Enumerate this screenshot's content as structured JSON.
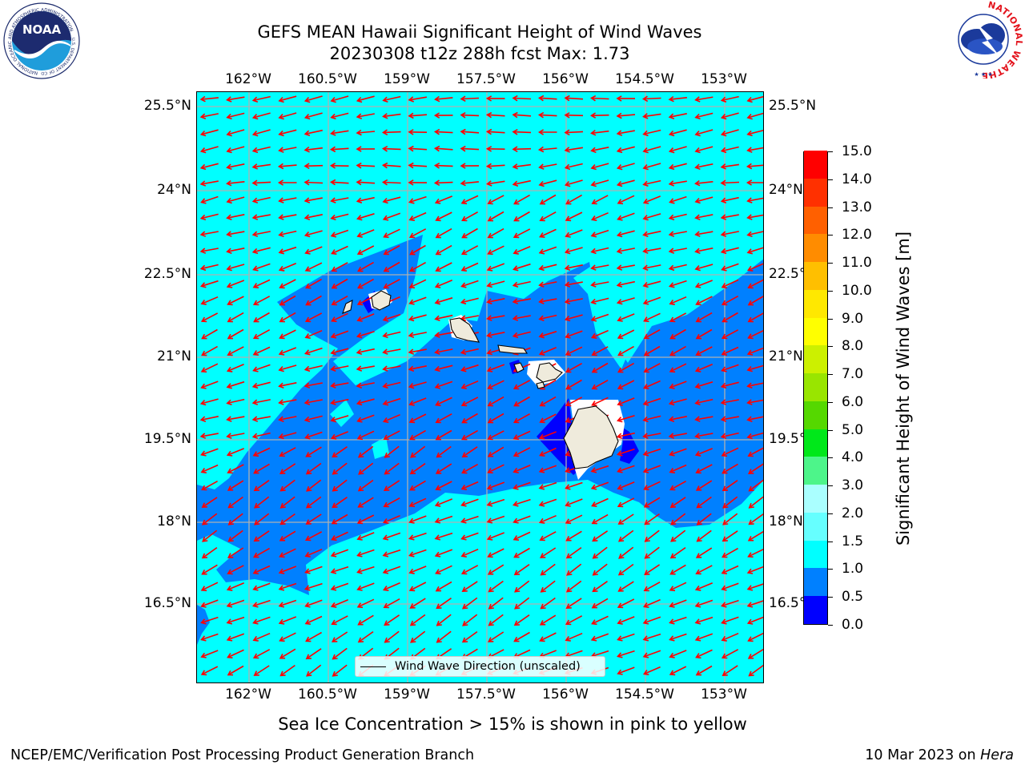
{
  "title": {
    "line1": "GEFS MEAN Hawaii Significant Height of Wind Waves",
    "line2": "20230308 t12z 288h fcst   Max: 1.73"
  },
  "map": {
    "lon_ticks": [
      "162°W",
      "160.5°W",
      "159°W",
      "157.5°W",
      "156°W",
      "154.5°W",
      "153°W"
    ],
    "lat_ticks": [
      "25.5°N",
      "24°N",
      "22.5°N",
      "21°N",
      "19.5°N",
      "18°N",
      "16.5°N"
    ],
    "wave_direction": "westward (east-northeast trade winds)",
    "legend_label": "Wind Wave Direction (unscaled)",
    "colors": {
      "ocean_1_1_5": "#00ffff",
      "ocean_0_5_1": "#0080ff",
      "ocean_0_0_5": "#0000ff",
      "land": "#efebdc",
      "arrow": "#ff0000"
    }
  },
  "colorbar": {
    "label": "Significant Height of Wind Waves [m]",
    "unit": "m",
    "ticks": [
      "0.0",
      "0.5",
      "1.0",
      "1.5",
      "2.0",
      "3.0",
      "4.0",
      "5.0",
      "6.0",
      "7.0",
      "8.0",
      "9.0",
      "10.0",
      "11.0",
      "12.0",
      "13.0",
      "14.0",
      "15.0"
    ],
    "colors": [
      "#0000ff",
      "#0080ff",
      "#00ffff",
      "#66ffff",
      "#aaffff",
      "#4df58a",
      "#00e81a",
      "#55d800",
      "#99e500",
      "#ccf000",
      "#ffff00",
      "#ffe800",
      "#ffbf00",
      "#ff8c00",
      "#ff6000",
      "#ff3000",
      "#ff0000"
    ]
  },
  "note": "Sea Ice Concentration > 15% is shown in pink to yellow",
  "footer": {
    "left": "NCEP/EMC/Verification Post Processing Product Generation Branch",
    "right_date": "10 Mar 2023 on ",
    "right_host": "Hera"
  },
  "logos": {
    "noaa": "NOAA",
    "noaa_ring": "NATIONAL OCEANIC AND ATMOSPHERIC ADMINISTRATION",
    "noaa_ring_bottom": "U.S. DEPARTMENT OF COMMERCE",
    "nws": "NATIONAL WEATHER SERVICE"
  }
}
